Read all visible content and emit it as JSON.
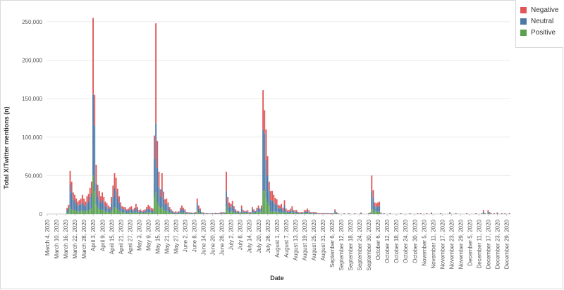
{
  "chart_data": {
    "type": "bar",
    "stacked": true,
    "xlabel": "Date",
    "ylabel": "Total X/Twitter mentions (n)",
    "ylim": [
      0,
      260000
    ],
    "yticks": [
      0,
      50000,
      100000,
      150000,
      200000,
      250000
    ],
    "ytick_labels": [
      "0",
      "50,000",
      "100,000",
      "150,000",
      "200,000",
      "250,000"
    ],
    "grid": true,
    "legend_position": "top-right",
    "x_start": "March 4, 2020",
    "x_end": "December 31, 2020",
    "x_tick_labels": [
      "March 4, 2020",
      "March 10, 2020",
      "March 16, 2020",
      "March 22, 2020",
      "March 28, 2020",
      "April 3, 2020",
      "April 9, 2020",
      "April 15, 2020",
      "April 21, 2020",
      "April 27, 2020",
      "May 3, 2020",
      "May 9, 2020",
      "May 15, 2020",
      "May 21, 2020",
      "May 27, 2020",
      "June 2, 2020",
      "June 8, 2020",
      "June 14, 2020",
      "June 20, 2020",
      "June 26, 2020",
      "July 2, 2020",
      "July 8, 2020",
      "July 14, 2020",
      "July 20, 2020",
      "July 26, 2020",
      "August 1, 2020",
      "August 7, 2020",
      "August 13, 2020",
      "August 19, 2020",
      "August 25, 2020",
      "August 31, 2020",
      "September 6, 2020",
      "September 12, 2020",
      "September 18, 2020",
      "September 24, 2020",
      "September 30, 2020",
      "October 6, 2020",
      "October 12, 2020",
      "October 18, 2020",
      "October 24, 2020",
      "October 30, 2020",
      "November 5, 2020",
      "November 11, 2020",
      "November 17, 2020",
      "November 23, 2020",
      "November 29, 2020",
      "December 5, 2020",
      "December 11, 2020",
      "December 17, 2020",
      "December 23, 2020",
      "December 29, 2020"
    ],
    "series": [
      {
        "name": "Negative",
        "color": "#e15759"
      },
      {
        "name": "Neutral",
        "color": "#4e79a7"
      },
      {
        "name": "Positive",
        "color": "#59a14f"
      }
    ],
    "points": [
      [
        "March 17, 2020",
        3000,
        4000,
        1000
      ],
      [
        "March 18, 2020",
        4000,
        6000,
        2000
      ],
      [
        "March 19, 2020",
        18000,
        30000,
        8000
      ],
      [
        "March 20, 2020",
        14000,
        22000,
        6000
      ],
      [
        "March 21, 2020",
        9000,
        14000,
        5000
      ],
      [
        "March 22, 2020",
        8000,
        12000,
        5000
      ],
      [
        "March 23, 2020",
        6000,
        10000,
        4000
      ],
      [
        "March 24, 2020",
        5000,
        8000,
        3000
      ],
      [
        "March 25, 2020",
        6000,
        9000,
        3000
      ],
      [
        "March 26, 2020",
        7000,
        9000,
        4000
      ],
      [
        "March 27, 2020",
        10000,
        10000,
        5000
      ],
      [
        "March 28, 2020",
        8000,
        8000,
        4000
      ],
      [
        "March 29, 2020",
        6000,
        7000,
        3000
      ],
      [
        "March 30, 2020",
        9000,
        10000,
        4000
      ],
      [
        "March 31, 2020",
        10000,
        11000,
        5000
      ],
      [
        "April 1, 2020",
        12000,
        16000,
        6000
      ],
      [
        "April 2, 2020",
        15000,
        20000,
        7000
      ],
      [
        "April 3, 2020",
        100000,
        105000,
        50000
      ],
      [
        "April 4, 2020",
        40000,
        85000,
        30000
      ],
      [
        "April 5, 2020",
        25000,
        27000,
        12000
      ],
      [
        "April 6, 2020",
        15000,
        15000,
        8000
      ],
      [
        "April 7, 2020",
        12000,
        12000,
        6000
      ],
      [
        "April 8, 2020",
        8000,
        10000,
        5000
      ],
      [
        "April 9, 2020",
        10000,
        12000,
        6000
      ],
      [
        "April 10, 2020",
        8000,
        9000,
        5000
      ],
      [
        "April 11, 2020",
        6000,
        7000,
        3000
      ],
      [
        "April 12, 2020",
        5000,
        6000,
        3000
      ],
      [
        "April 13, 2020",
        4000,
        5000,
        2000
      ],
      [
        "April 14, 2020",
        3000,
        4000,
        2000
      ],
      [
        "April 15, 2020",
        8000,
        10000,
        4000
      ],
      [
        "April 16, 2020",
        15000,
        16000,
        6000
      ],
      [
        "April 17, 2020",
        19000,
        25000,
        9000
      ],
      [
        "April 18, 2020",
        17000,
        22000,
        8000
      ],
      [
        "April 19, 2020",
        12000,
        15000,
        6000
      ],
      [
        "April 20, 2020",
        8000,
        11000,
        4000
      ],
      [
        "April 21, 2020",
        5000,
        7000,
        3000
      ],
      [
        "April 22, 2020",
        3000,
        5000,
        2000
      ],
      [
        "April 23, 2020",
        3000,
        4000,
        2000
      ],
      [
        "April 24, 2020",
        3000,
        4000,
        2000
      ],
      [
        "April 25, 2020",
        2000,
        3000,
        1000
      ],
      [
        "April 26, 2020",
        3000,
        3000,
        1000
      ],
      [
        "April 27, 2020",
        3000,
        4000,
        2000
      ],
      [
        "April 28, 2020",
        4000,
        4000,
        2000
      ],
      [
        "April 29, 2020",
        2000,
        3000,
        1000
      ],
      [
        "April 30, 2020",
        3000,
        3000,
        2000
      ],
      [
        "May 1, 2020",
        5000,
        5000,
        3000
      ],
      [
        "May 2, 2020",
        3000,
        4000,
        2000
      ],
      [
        "May 3, 2020",
        2000,
        2000,
        1000
      ],
      [
        "May 4, 2020",
        2000,
        3000,
        1000
      ],
      [
        "May 5, 2020",
        1000,
        2000,
        1000
      ],
      [
        "May 6, 2020",
        2000,
        2000,
        1000
      ],
      [
        "May 7, 2020",
        2000,
        3000,
        1000
      ],
      [
        "May 8, 2020",
        3000,
        4000,
        2000
      ],
      [
        "May 9, 2020",
        5000,
        5000,
        2000
      ],
      [
        "May 10, 2020",
        4000,
        4000,
        2000
      ],
      [
        "May 11, 2020",
        3000,
        3000,
        2000
      ],
      [
        "May 12, 2020",
        3000,
        3000,
        1000
      ],
      [
        "May 13, 2020",
        30000,
        50000,
        22000
      ],
      [
        "May 14, 2020",
        130000,
        90000,
        28000
      ],
      [
        "May 15, 2020",
        35000,
        45000,
        15000
      ],
      [
        "May 16, 2020",
        20000,
        25000,
        10000
      ],
      [
        "May 17, 2020",
        10000,
        15000,
        7000
      ],
      [
        "May 18, 2020",
        20000,
        24000,
        9000
      ],
      [
        "May 19, 2020",
        10000,
        13000,
        6000
      ],
      [
        "May 20, 2020",
        6000,
        9000,
        4000
      ],
      [
        "May 21, 2020",
        7000,
        9000,
        4000
      ],
      [
        "May 22, 2020",
        5000,
        7000,
        3000
      ],
      [
        "May 23, 2020",
        3000,
        4000,
        2000
      ],
      [
        "May 24, 2020",
        2000,
        3000,
        1000
      ],
      [
        "May 25, 2020",
        1000,
        2000,
        1000
      ],
      [
        "May 26, 2020",
        1000,
        1000,
        500
      ],
      [
        "May 27, 2020",
        1000,
        2000,
        500
      ],
      [
        "May 28, 2020",
        1000,
        1000,
        500
      ],
      [
        "May 29, 2020",
        1000,
        2000,
        500
      ],
      [
        "May 30, 2020",
        3000,
        4000,
        1000
      ],
      [
        "May 31, 2020",
        4000,
        5000,
        2000
      ],
      [
        "June 1, 2020",
        3000,
        4000,
        1000
      ],
      [
        "June 2, 2020",
        2000,
        3000,
        1000
      ],
      [
        "June 3, 2020",
        1000,
        1000,
        500
      ],
      [
        "June 4, 2020",
        1000,
        1000,
        500
      ],
      [
        "June 5, 2020",
        500,
        1000,
        500
      ],
      [
        "June 6, 2020",
        500,
        1000,
        500
      ],
      [
        "June 7, 2020",
        500,
        1000,
        0
      ],
      [
        "June 8, 2020",
        500,
        1000,
        500
      ],
      [
        "June 9, 2020",
        1000,
        1000,
        500
      ],
      [
        "June 10, 2020",
        6000,
        9000,
        5000
      ],
      [
        "June 11, 2020",
        4000,
        5000,
        2000
      ],
      [
        "June 12, 2020",
        3000,
        3000,
        1000
      ],
      [
        "June 13, 2020",
        1000,
        1000,
        500
      ],
      [
        "June 14, 2020",
        500,
        1000,
        500
      ],
      [
        "June 15, 2020",
        500,
        500,
        0
      ],
      [
        "June 16, 2020",
        500,
        500,
        0
      ],
      [
        "June 17, 2020",
        500,
        500,
        0
      ],
      [
        "June 18, 2020",
        0,
        500,
        0
      ],
      [
        "June 19, 2020",
        500,
        500,
        0
      ],
      [
        "June 20, 2020",
        500,
        500,
        0
      ],
      [
        "June 21, 2020",
        500,
        500,
        0
      ],
      [
        "June 22, 2020",
        500,
        1000,
        0
      ],
      [
        "June 23, 2020",
        500,
        500,
        0
      ],
      [
        "June 24, 2020",
        500,
        500,
        0
      ],
      [
        "June 25, 2020",
        500,
        1000,
        500
      ],
      [
        "June 26, 2020",
        1000,
        1000,
        500
      ],
      [
        "June 27, 2020",
        1000,
        1000,
        500
      ],
      [
        "June 28, 2020",
        500,
        1000,
        500
      ],
      [
        "June 29, 2020",
        25000,
        20000,
        10000
      ],
      [
        "June 30, 2020",
        8000,
        10000,
        4000
      ],
      [
        "July 1, 2020",
        6000,
        7000,
        2000
      ],
      [
        "July 2, 2020",
        4000,
        6000,
        3000
      ],
      [
        "July 3, 2020",
        5000,
        8000,
        4000
      ],
      [
        "July 4, 2020",
        3000,
        5000,
        2000
      ],
      [
        "July 5, 2020",
        2000,
        3000,
        1000
      ],
      [
        "July 6, 2020",
        1000,
        2000,
        1000
      ],
      [
        "July 7, 2020",
        1000,
        2000,
        1000
      ],
      [
        "July 8, 2020",
        1000,
        1000,
        500
      ],
      [
        "July 9, 2020",
        4000,
        5000,
        2000
      ],
      [
        "July 10, 2020",
        2000,
        2000,
        1000
      ],
      [
        "July 11, 2020",
        1000,
        2000,
        1000
      ],
      [
        "July 12, 2020",
        1000,
        2000,
        1000
      ],
      [
        "July 13, 2020",
        2000,
        2000,
        1000
      ],
      [
        "July 14, 2020",
        1000,
        1000,
        500
      ],
      [
        "July 15, 2020",
        1000,
        1000,
        500
      ],
      [
        "July 16, 2020",
        3000,
        4000,
        2000
      ],
      [
        "July 17, 2020",
        2000,
        3000,
        1000
      ],
      [
        "July 18, 2020",
        1000,
        2000,
        1000
      ],
      [
        "July 19, 2020",
        2000,
        4000,
        2000
      ],
      [
        "July 20, 2020",
        3000,
        5000,
        3000
      ],
      [
        "July 21, 2020",
        2000,
        3000,
        2000
      ],
      [
        "July 22, 2020",
        3000,
        5000,
        3000
      ],
      [
        "July 23, 2020",
        51000,
        80000,
        30000
      ],
      [
        "July 24, 2020",
        30000,
        75000,
        30000
      ],
      [
        "July 25, 2020",
        40000,
        50000,
        20000
      ],
      [
        "July 26, 2020",
        25000,
        35000,
        15000
      ],
      [
        "July 27, 2020",
        12000,
        20000,
        10000
      ],
      [
        "July 28, 2020",
        12000,
        15000,
        3000
      ],
      [
        "July 29, 2020",
        12000,
        15000,
        3000
      ],
      [
        "July 30, 2020",
        10000,
        12000,
        3000
      ],
      [
        "July 31, 2020",
        8000,
        10000,
        3000
      ],
      [
        "August 1, 2020",
        7000,
        9000,
        3000
      ],
      [
        "August 2, 2020",
        4000,
        6000,
        2000
      ],
      [
        "August 3, 2020",
        4000,
        5000,
        2000
      ],
      [
        "August 4, 2020",
        5000,
        6000,
        2000
      ],
      [
        "August 5, 2020",
        3000,
        4000,
        1000
      ],
      [
        "August 6, 2020",
        7000,
        8000,
        3000
      ],
      [
        "August 7, 2020",
        3000,
        3000,
        1000
      ],
      [
        "August 8, 2020",
        2000,
        2000,
        1000
      ],
      [
        "August 9, 2020",
        2000,
        2000,
        1000
      ],
      [
        "August 10, 2020",
        3000,
        3000,
        1000
      ],
      [
        "August 11, 2020",
        4000,
        4000,
        2000
      ],
      [
        "August 12, 2020",
        2000,
        2000,
        1000
      ],
      [
        "August 13, 2020",
        2000,
        2000,
        1000
      ],
      [
        "August 14, 2020",
        2000,
        2000,
        1000
      ],
      [
        "August 15, 2020",
        1000,
        1000,
        500
      ],
      [
        "August 16, 2020",
        1000,
        1000,
        500
      ],
      [
        "August 17, 2020",
        1000,
        1000,
        500
      ],
      [
        "August 18, 2020",
        1000,
        1000,
        500
      ],
      [
        "August 19, 2020",
        2000,
        2000,
        1000
      ],
      [
        "August 20, 2020",
        2000,
        2000,
        1000
      ],
      [
        "August 21, 2020",
        3000,
        3000,
        1000
      ],
      [
        "August 22, 2020",
        2000,
        2000,
        1000
      ],
      [
        "August 23, 2020",
        1000,
        1000,
        500
      ],
      [
        "August 24, 2020",
        1000,
        1000,
        500
      ],
      [
        "August 25, 2020",
        1000,
        1000,
        500
      ],
      [
        "August 26, 2020",
        1000,
        1000,
        500
      ],
      [
        "August 27, 2020",
        500,
        1000,
        500
      ],
      [
        "August 28, 2020",
        500,
        500,
        0
      ],
      [
        "August 29, 2020",
        500,
        500,
        0
      ],
      [
        "August 30, 2020",
        500,
        500,
        0
      ],
      [
        "August 31, 2020",
        500,
        500,
        0
      ],
      [
        "September 1, 2020",
        500,
        500,
        0
      ],
      [
        "September 2, 2020",
        500,
        500,
        0
      ],
      [
        "September 3, 2020",
        500,
        500,
        0
      ],
      [
        "September 4, 2020",
        500,
        500,
        0
      ],
      [
        "September 5, 2020",
        500,
        500,
        0
      ],
      [
        "September 6, 2020",
        500,
        500,
        0
      ],
      [
        "September 7, 2020",
        500,
        500,
        0
      ],
      [
        "September 8, 2020",
        2000,
        3000,
        1000
      ],
      [
        "September 9, 2020",
        1000,
        1000,
        500
      ],
      [
        "September 10, 2020",
        500,
        500,
        0
      ],
      [
        "September 14, 2020",
        500,
        500,
        0
      ],
      [
        "September 17, 2020",
        500,
        500,
        0
      ],
      [
        "September 21, 2020",
        500,
        500,
        0
      ],
      [
        "September 25, 2020",
        1000,
        1000,
        0
      ],
      [
        "September 30, 2020",
        500,
        500,
        0
      ],
      [
        "October 1, 2020",
        500,
        1000,
        500
      ],
      [
        "October 2, 2020",
        20000,
        24000,
        6000
      ],
      [
        "October 3, 2020",
        10000,
        15000,
        6000
      ],
      [
        "October 4, 2020",
        5000,
        7000,
        3000
      ],
      [
        "October 5, 2020",
        5000,
        6000,
        3000
      ],
      [
        "October 6, 2020",
        5000,
        7000,
        3000
      ],
      [
        "October 7, 2020",
        6000,
        7000,
        3000
      ],
      [
        "October 8, 2020",
        1000,
        1000,
        0
      ],
      [
        "October 10, 2020",
        500,
        500,
        0
      ],
      [
        "October 14, 2020",
        500,
        500,
        0
      ],
      [
        "October 21, 2020",
        500,
        500,
        0
      ],
      [
        "October 27, 2020",
        500,
        500,
        0
      ],
      [
        "November 1, 2020",
        500,
        500,
        0
      ],
      [
        "November 3, 2020",
        500,
        500,
        0
      ],
      [
        "November 7, 2020",
        500,
        500,
        0
      ],
      [
        "November 10, 2020",
        1000,
        1000,
        0
      ],
      [
        "November 16, 2020",
        500,
        500,
        0
      ],
      [
        "November 22, 2020",
        1000,
        1000,
        500
      ],
      [
        "November 26, 2020",
        500,
        500,
        0
      ],
      [
        "December 3, 2020",
        500,
        500,
        0
      ],
      [
        "December 9, 2020",
        500,
        500,
        0
      ],
      [
        "December 13, 2020",
        500,
        500,
        0
      ],
      [
        "December 14, 2020",
        2000,
        2000,
        1000
      ],
      [
        "December 15, 2020",
        500,
        500,
        0
      ],
      [
        "December 17, 2020",
        2000,
        2000,
        1000
      ],
      [
        "December 18, 2020",
        1000,
        1000,
        500
      ],
      [
        "December 19, 2020",
        500,
        500,
        0
      ],
      [
        "December 21, 2020",
        500,
        500,
        0
      ],
      [
        "December 23, 2020",
        1000,
        1000,
        0
      ],
      [
        "December 26, 2020",
        500,
        500,
        0
      ],
      [
        "December 28, 2020",
        500,
        500,
        0
      ],
      [
        "December 31, 2020",
        500,
        500,
        0
      ]
    ]
  }
}
